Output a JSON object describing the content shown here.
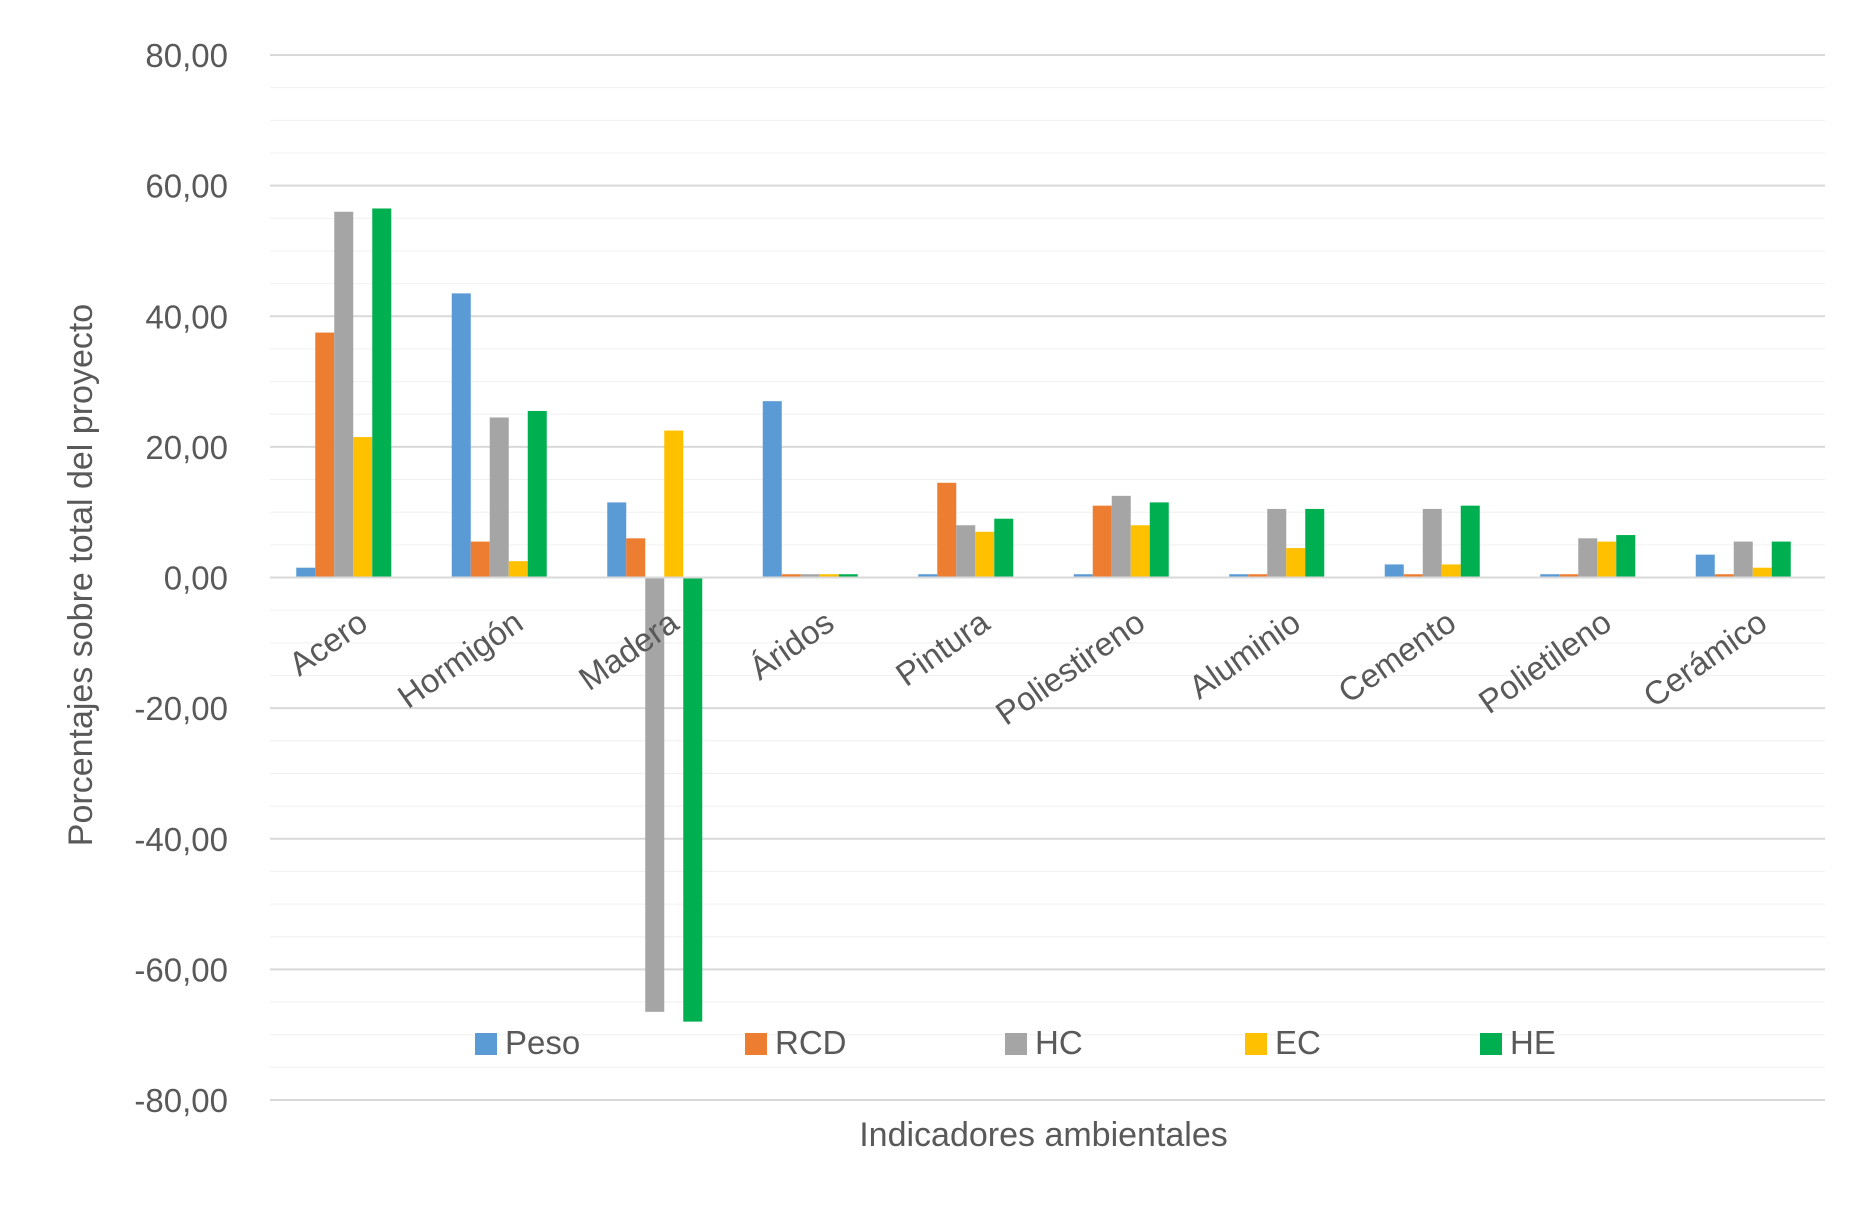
{
  "chart_data": {
    "type": "bar",
    "xlabel": "Indicadores ambientales",
    "ylabel": "Porcentajes sobre total del proyecto",
    "ylim": [
      -80,
      80
    ],
    "yticks": [
      80,
      60,
      40,
      20,
      0,
      -20,
      -40,
      -60,
      -80
    ],
    "ytick_labels": [
      "80,00",
      "60,00",
      "40,00",
      "20,00",
      "0,00",
      "-20,00",
      "-40,00",
      "-60,00",
      "-80,00"
    ],
    "grid": true,
    "legend_position": "bottom-inside",
    "categories": [
      "Acero",
      "Hormigón",
      "Madera",
      "Áridos",
      "Pintura",
      "Poliestireno",
      "Aluminio",
      "Cemento",
      "Polietileno",
      "Cerámico"
    ],
    "series": [
      {
        "name": "Peso",
        "color": "#5B9BD5",
        "values": [
          1.5,
          43.5,
          11.5,
          27.0,
          0.5,
          0.5,
          0.5,
          2.0,
          0.5,
          3.5
        ]
      },
      {
        "name": "RCD",
        "color": "#ED7D31",
        "values": [
          37.5,
          5.5,
          6.0,
          0.5,
          14.5,
          11.0,
          0.5,
          0.5,
          0.5,
          0.5
        ]
      },
      {
        "name": "HC",
        "color": "#A5A5A5",
        "values": [
          56.0,
          24.5,
          -66.5,
          0.5,
          8.0,
          12.5,
          10.5,
          10.5,
          6.0,
          5.5
        ]
      },
      {
        "name": "EC",
        "color": "#FFC000",
        "values": [
          21.5,
          2.5,
          22.5,
          0.5,
          7.0,
          8.0,
          4.5,
          2.0,
          5.5,
          1.5
        ]
      },
      {
        "name": "HE",
        "color": "#00B050",
        "values": [
          56.5,
          25.5,
          -68.0,
          0.5,
          9.0,
          11.5,
          10.5,
          11.0,
          6.5,
          5.5
        ]
      }
    ]
  }
}
